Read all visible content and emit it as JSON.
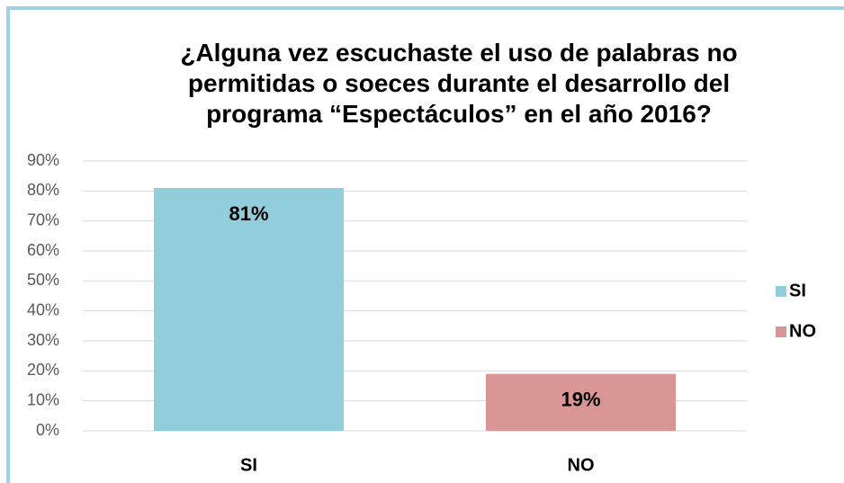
{
  "chart_data": {
    "type": "bar",
    "title": "¿Alguna vez escuchaste el uso de palabras no permitidas o soeces durante el desarrollo del programa “Espectáculos” en el año 2016?",
    "categories": [
      "SI",
      "NO"
    ],
    "values": [
      81,
      19
    ],
    "value_labels": [
      "81%",
      "19%"
    ],
    "colors": [
      "#92cddc",
      "#d99694"
    ],
    "ylim": [
      0,
      90
    ],
    "yticks": [
      {
        "value": 0,
        "label": "0%"
      },
      {
        "value": 10,
        "label": "10%"
      },
      {
        "value": 20,
        "label": "20%"
      },
      {
        "value": 30,
        "label": "30%"
      },
      {
        "value": 40,
        "label": "40%"
      },
      {
        "value": 50,
        "label": "50%"
      },
      {
        "value": 60,
        "label": "60%"
      },
      {
        "value": 70,
        "label": "70%"
      },
      {
        "value": 80,
        "label": "80%"
      },
      {
        "value": 90,
        "label": "90%"
      }
    ],
    "grid": true,
    "legend": "right"
  }
}
